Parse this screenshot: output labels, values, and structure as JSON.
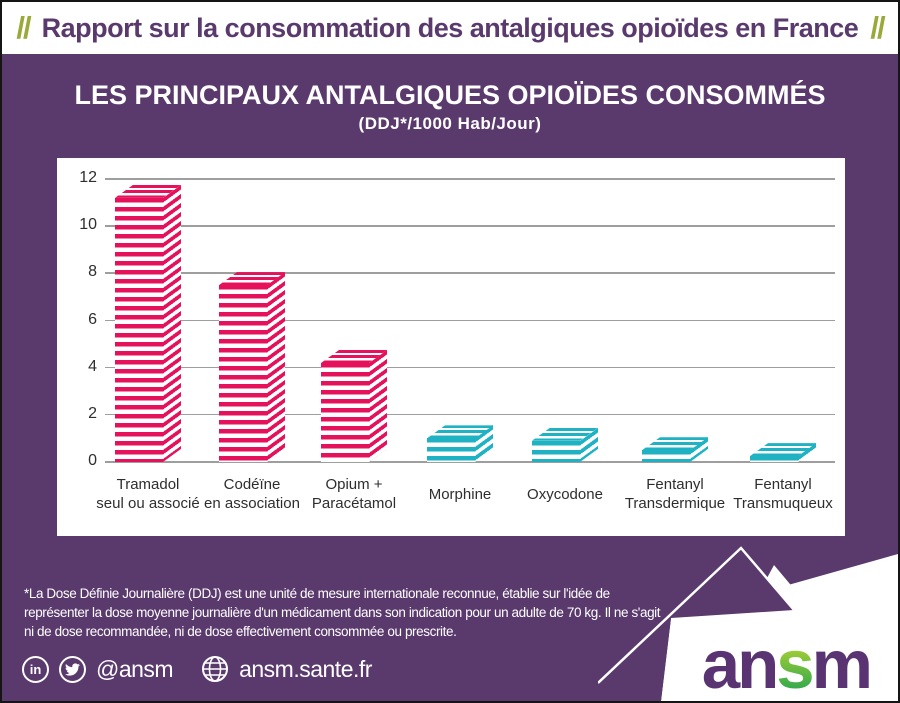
{
  "header": {
    "left_slashes": "//",
    "right_slashes": "//",
    "title": "Rapport sur la consommation des antalgiques opioïdes en France"
  },
  "infographic": {
    "title": "LES PRINCIPAUX ANTALGIQUES OPIOÏDES CONSOMMÉS",
    "subtitle": "(DDJ*/1000 Hab/Jour)"
  },
  "chart_data": {
    "type": "bar",
    "title": "LES PRINCIPAUX ANTALGIQUES OPIOÏDES CONSOMMÉS",
    "subtitle": "(DDJ*/1000 Hab/Jour)",
    "unit": "DDJ/1000 habitants/jour",
    "categories": [
      "Tramadol seul ou associé",
      "Codéïne en association",
      "Opium + Paracétamol",
      "Morphine",
      "Oxycodone",
      "Fentanyl Transdermique",
      "Fentanyl Transmuqueux"
    ],
    "category_label_lines": [
      [
        "Tramadol",
        "seul ou associé"
      ],
      [
        "Codéïne",
        "en association"
      ],
      [
        "Opium +",
        "Paracétamol"
      ],
      [
        "Morphine"
      ],
      [
        "Oxycodone"
      ],
      [
        "Fentanyl",
        "Transdermique"
      ],
      [
        "Fentanyl",
        "Transmuqueux"
      ]
    ],
    "values": [
      11.2,
      7.5,
      4.2,
      1.0,
      0.9,
      0.5,
      0.25
    ],
    "bar_colors": [
      "#e5115a",
      "#e5115a",
      "#e5115a",
      "#1eb2c3",
      "#1eb2c3",
      "#1eb2c3",
      "#1eb2c3"
    ],
    "y_ticks": [
      0,
      2,
      4,
      6,
      8,
      10,
      12
    ],
    "ylim": [
      0,
      12
    ],
    "grid": "horizontal",
    "legend": "none"
  },
  "footnote": {
    "lines": [
      "*La Dose Définie Journalière (DDJ) est une unité de mesure internationale reconnue, établie sur l'idée de",
      "représenter la dose moyenne journalière d'un médicament dans son indication pour un adulte de 70 kg. Il ne s'agit",
      "ni de dose recommandée, ni de dose effectivement consommée ou prescrite."
    ]
  },
  "footer": {
    "linkedin_glyph": "in",
    "social_handle": "@ansm",
    "website": "ansm.sante.fr",
    "logo": {
      "an": "an",
      "s": "s",
      "m": "m"
    }
  },
  "colors": {
    "background_purple": "#5a396d",
    "header_green": "#9aa93a",
    "bar_pink": "#e5115a",
    "bar_cyan": "#1eb2c3",
    "gridline_gray": "#9e9e9e",
    "logo_purple": "#5a3472",
    "logo_green": "#2ea84d",
    "logo_yellow_green": "#c9d92e"
  }
}
